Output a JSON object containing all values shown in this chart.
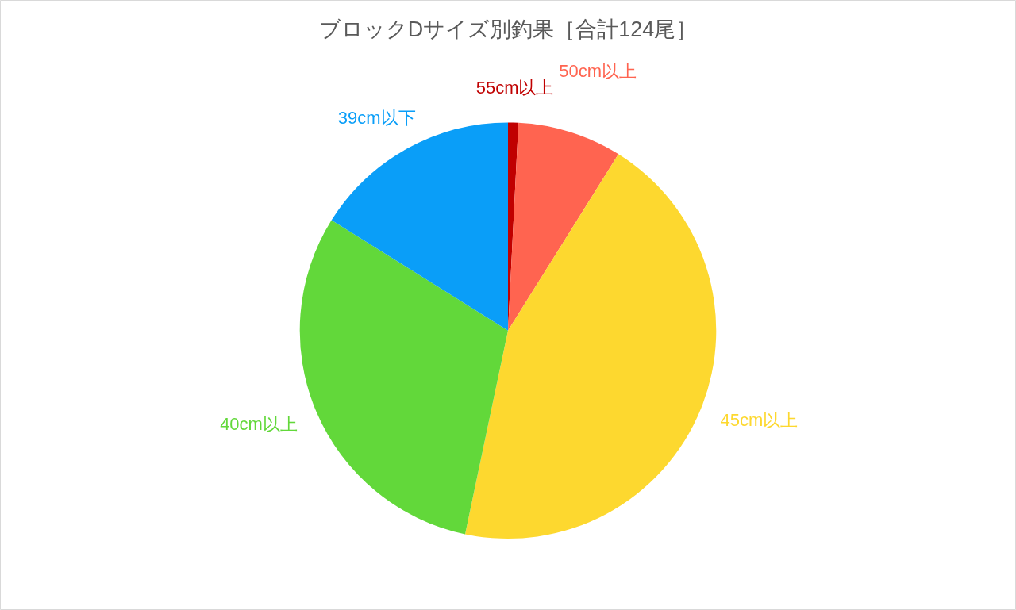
{
  "chart_data": {
    "type": "pie",
    "title": "ブロックDサイズ別釣果［合計124尾］",
    "categories": [
      "55cm以上",
      "50cm以上",
      "45cm以上",
      "40cm以上",
      "39cm以下"
    ],
    "values": [
      0.8,
      8.1,
      44.4,
      30.6,
      16.1
    ],
    "colors": [
      "#c00000",
      "#ff6450",
      "#fdd82f",
      "#62d83a",
      "#0a9ef8"
    ],
    "legend": false
  }
}
